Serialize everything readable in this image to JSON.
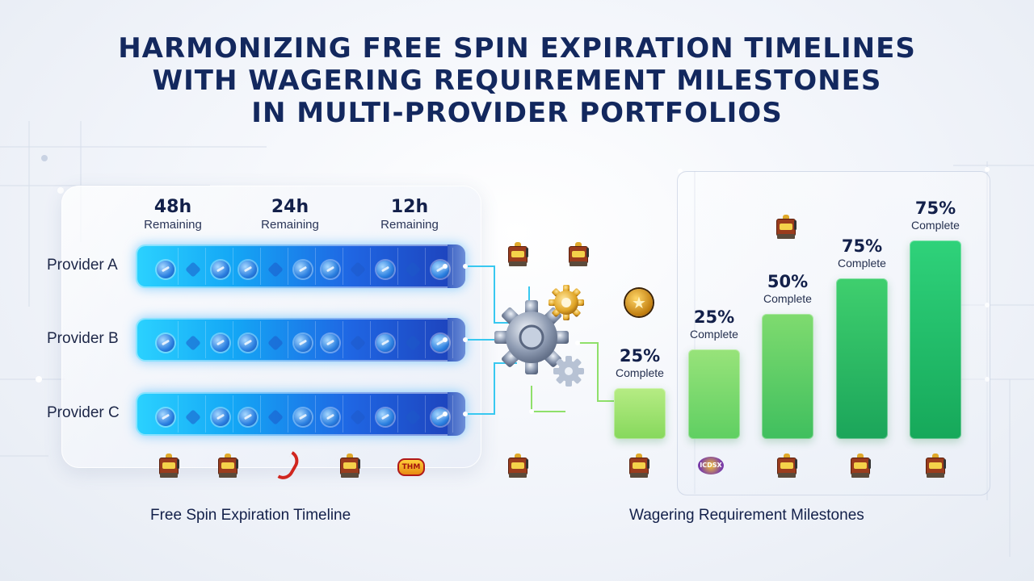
{
  "title": {
    "line1": "HARMONIZING FREE SPIN EXPIRATION TIMELINES",
    "line2": "WITH WAGERING REQUIREMENT MILESTONES",
    "line3": "IN MULTI-PROVIDER PORTFOLIOS"
  },
  "timeline": {
    "headers": [
      {
        "value": "48h",
        "label": "Remaining"
      },
      {
        "value": "24h",
        "label": "Remaining"
      },
      {
        "value": "12h",
        "label": "Remaining"
      }
    ],
    "providers": [
      {
        "name": "Provider A"
      },
      {
        "name": "Provider B"
      },
      {
        "name": "Provider C"
      }
    ],
    "caption": "Free Spin Expiration Timeline",
    "track_colors": {
      "start": "#2bd2ff",
      "end": "#1d3fb8"
    }
  },
  "milestones": {
    "bars": [
      {
        "percent": "25%",
        "label": "Complete",
        "level": 0.2,
        "color_top": "#b6ec84",
        "color_bottom": "#86d85c"
      },
      {
        "percent": "25%",
        "label": "Complete",
        "level": 0.45,
        "color_top": "#98e37a",
        "color_bottom": "#5fcf62"
      },
      {
        "percent": "50%",
        "label": "Complete",
        "level": 0.63,
        "color_top": "#7fdb6f",
        "color_bottom": "#3fbf5e"
      },
      {
        "percent": "75%",
        "label": "Complete",
        "level": 0.81,
        "color_top": "#3fcf6e",
        "color_bottom": "#1ba55a"
      },
      {
        "percent": "75%",
        "label": "Complete",
        "level": 1.0,
        "color_top": "#2fd27a",
        "color_bottom": "#16a85a"
      }
    ],
    "caption": "Wagering Requirement Milestones"
  },
  "icons": {
    "badge_text_left": "THM",
    "badge_text_right": "ICDSX"
  },
  "colors": {
    "title": "#13285e",
    "connector": "#38c8f0",
    "connector_green": "#8fe06a"
  }
}
